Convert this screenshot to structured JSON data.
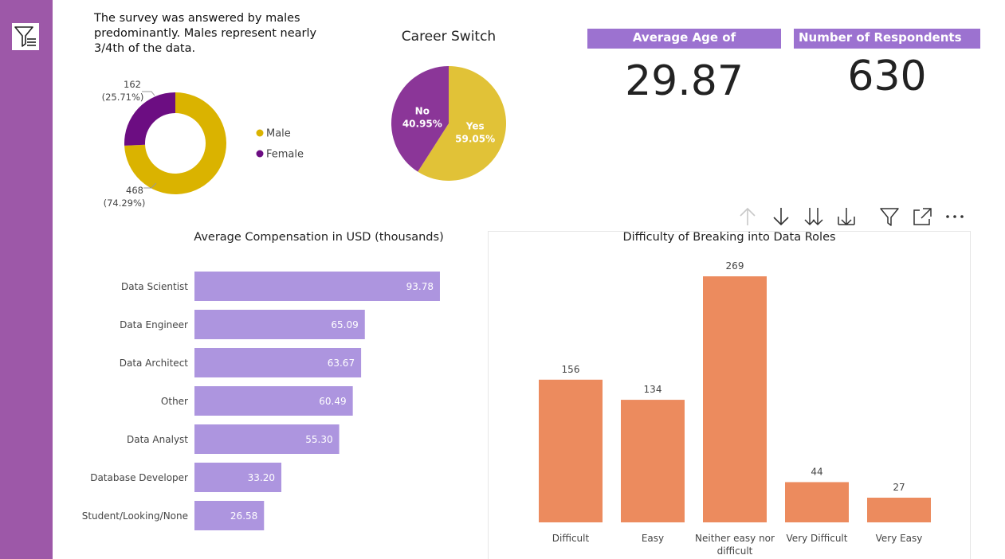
{
  "narrative": "The survey was answered by males predominantly. Males represent nearly 3/4th of the data.",
  "kpis": {
    "avg_age": {
      "title": "Average Age of Respondents",
      "value": "29.87"
    },
    "respondents": {
      "title": "Number of Respondents",
      "value": "630"
    }
  },
  "icons": {
    "filter_pane": "filter-pane-icon",
    "toolbar": [
      "arrow-up-icon",
      "arrow-down-icon",
      "double-arrow-down-icon",
      "expand-hierarchy-icon",
      "filter-icon",
      "focus-mode-icon",
      "more-options-icon"
    ]
  },
  "chart_data": [
    {
      "type": "pie",
      "variant": "donut",
      "title": "",
      "labels": [
        "Male",
        "Female"
      ],
      "values": [
        468,
        162
      ],
      "percent_labels": [
        "(74.29%)",
        "(25.71%)"
      ],
      "colors": [
        "#dab300",
        "#6c0d82"
      ],
      "legend": "right"
    },
    {
      "type": "pie",
      "title": "Career Switch",
      "labels": [
        "Yes",
        "No"
      ],
      "values": [
        59.05,
        40.95
      ],
      "value_labels": [
        "59.05%",
        "40.95%"
      ],
      "colors": [
        "#e1c237",
        "#8b3698"
      ]
    },
    {
      "type": "bar",
      "orientation": "horizontal",
      "title": "Average Compensation in USD (thousands)",
      "categories": [
        "Data Scientist",
        "Data Engineer",
        "Data Architect",
        "Other",
        "Data Analyst",
        "Database Developer",
        "Student/Looking/None"
      ],
      "values": [
        93.78,
        65.09,
        63.67,
        60.49,
        55.3,
        33.2,
        26.58
      ],
      "value_labels": [
        "93.78",
        "65.09",
        "63.67",
        "60.49",
        "55.30",
        "33.20",
        "26.58"
      ],
      "xlim": [
        0,
        100
      ],
      "color": "#ad95df"
    },
    {
      "type": "bar",
      "title": "Difficulty of Breaking into Data Roles",
      "categories": [
        "Difficult",
        "Easy",
        "Neither easy nor difficult",
        "Very Difficult",
        "Very Easy"
      ],
      "category_lines": [
        [
          "Difficult"
        ],
        [
          "Easy"
        ],
        [
          "Neither easy nor",
          "difficult"
        ],
        [
          "Very Difficult"
        ],
        [
          "Very Easy"
        ]
      ],
      "values": [
        156,
        134,
        269,
        44,
        27
      ],
      "ylim": [
        0,
        269
      ],
      "color": "#ec8b5e"
    }
  ]
}
